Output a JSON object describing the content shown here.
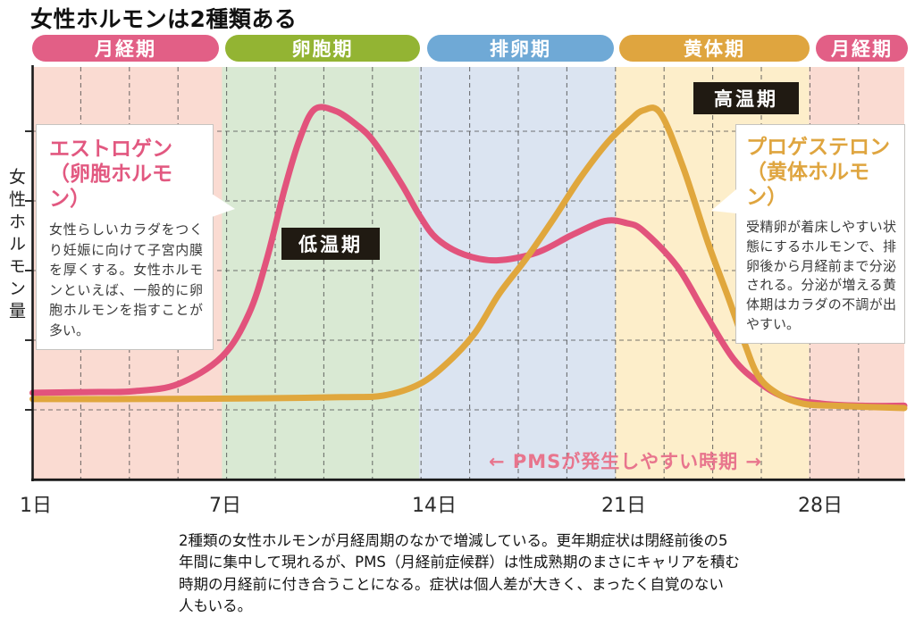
{
  "title": "女性ホルモンは2種類ある",
  "phase_bar": {
    "phases": [
      {
        "label": "月経期",
        "pill_color": "#e25f86",
        "band_color": "#fadbd2"
      },
      {
        "label": "卵胞期",
        "pill_color": "#93b433",
        "band_color": "#d9e9d3"
      },
      {
        "label": "排卵期",
        "pill_color": "#6fa9d6",
        "band_color": "#dbe4f1"
      },
      {
        "label": "黄体期",
        "pill_color": "#dfa53f",
        "band_color": "#fdeeca"
      },
      {
        "label": "月経期",
        "pill_color": "#e25f86",
        "band_color": "#fadbd2"
      }
    ]
  },
  "callouts": {
    "estrogen": {
      "title": "エストロゲン\n（卵胞ホルモン）",
      "body": "女性らしいカラダをつくり妊娠に向けて子宮内膜を厚くする。女性ホルモンといえば、一般的に卵胞ホルモンを指すことが多い。",
      "accent_color": "#e25880"
    },
    "progesterone": {
      "title": "プロゲステロン\n（黄体ホルモン）",
      "body": "受精卵が着床しやすい状態にするホルモンで、排卵後から月経前まで分泌される。分泌が増える黄体期はカラダの不調が出やすい。",
      "accent_color": "#dfa53f"
    }
  },
  "annotations": {
    "high_temp": "高温期",
    "low_temp": "低温期",
    "pms": "← PMSが発生しやすい時期 →"
  },
  "caption": "2種類の女性ホルモンが月経周期のなかで増減している。更年期症状は閉経前後の5\n年間に集中して現れるが、PMS（月経前症候群）は性成熟期のまさにキャリアを積む\n時期の月経前に付き合うことになる。症状は個人差が大きく、まったく自覚のない\n人もいる。",
  "chart_data": {
    "type": "line",
    "title": "女性ホルモンは2種類ある",
    "ylabel": "女性ホルモン量",
    "xlabel": "",
    "x_range_days": [
      1,
      31
    ],
    "y_range": [
      0,
      100
    ],
    "grid": "dashed",
    "legend_position": "callout-boxes",
    "x_ticks": [
      {
        "label": "1日",
        "day": 1
      },
      {
        "label": "7日",
        "day": 7
      },
      {
        "label": "14日",
        "day": 14
      },
      {
        "label": "21日",
        "day": 21
      },
      {
        "label": "28日",
        "day": 28
      }
    ],
    "phase_bands_days": [
      {
        "name": "月経期",
        "from": 0.9,
        "to": 6.9
      },
      {
        "name": "卵胞期",
        "from": 6.9,
        "to": 13.5
      },
      {
        "name": "排卵期",
        "from": 13.5,
        "to": 20.7
      },
      {
        "name": "黄体期",
        "from": 20.7,
        "to": 27.6
      },
      {
        "name": "月経期",
        "from": 27.6,
        "to": 31
      }
    ],
    "series": [
      {
        "name": "エストロゲン（卵胞ホルモン）",
        "color": "#e2537c",
        "points": [
          [
            0.9,
            22.3
          ],
          [
            3,
            22.5
          ],
          [
            4.1,
            22.7
          ],
          [
            5.5,
            24.5
          ],
          [
            6.9,
            31.5
          ],
          [
            7.8,
            42.5
          ],
          [
            8.4,
            56.5
          ],
          [
            9.0,
            74.5
          ],
          [
            9.5,
            87
          ],
          [
            10.0,
            94.5
          ],
          [
            10.7,
            94
          ],
          [
            11.4,
            90.5
          ],
          [
            12.0,
            86
          ],
          [
            12.9,
            75.5
          ],
          [
            13.5,
            67.5
          ],
          [
            14.1,
            61.5
          ],
          [
            15.1,
            57.5
          ],
          [
            16.3,
            56
          ],
          [
            17.8,
            58
          ],
          [
            19.1,
            62.5
          ],
          [
            20.3,
            66
          ],
          [
            21.1,
            65.5
          ],
          [
            21.7,
            63.5
          ],
          [
            22.9,
            54.5
          ],
          [
            23.9,
            42.5
          ],
          [
            24.9,
            31
          ],
          [
            25.8,
            25
          ],
          [
            26.8,
            21
          ],
          [
            28.1,
            19.5
          ],
          [
            29.5,
            19
          ],
          [
            31,
            19
          ]
        ]
      },
      {
        "name": "プロゲステロン（黄体ホルモン）",
        "color": "#e0a73d",
        "points": [
          [
            0.9,
            20.7
          ],
          [
            4,
            20.7
          ],
          [
            8.4,
            20.9
          ],
          [
            11,
            21.2
          ],
          [
            12.3,
            21.6
          ],
          [
            13.5,
            24.5
          ],
          [
            14.5,
            30
          ],
          [
            15.5,
            37.5
          ],
          [
            16.4,
            47.5
          ],
          [
            17.4,
            56.5
          ],
          [
            18.4,
            66.5
          ],
          [
            19.4,
            77
          ],
          [
            20.4,
            86
          ],
          [
            21.2,
            91.5
          ],
          [
            21.7,
            94.2
          ],
          [
            22.3,
            93.5
          ],
          [
            23.1,
            80
          ],
          [
            24.0,
            60.5
          ],
          [
            24.7,
            47
          ],
          [
            25.3,
            35
          ],
          [
            25.8,
            26.5
          ],
          [
            26.5,
            22
          ],
          [
            27.4,
            19.5
          ],
          [
            28.5,
            19
          ],
          [
            31,
            18.4
          ]
        ]
      }
    ]
  }
}
